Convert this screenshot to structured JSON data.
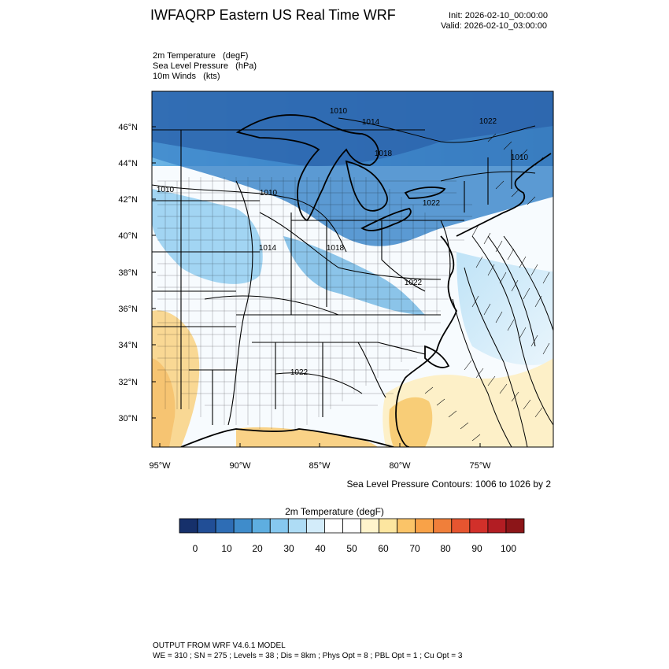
{
  "header": {
    "title": "IWFAQRP Eastern US Real Time WRF",
    "init": "Init: 2026-02-10_00:00:00",
    "valid": "Valid: 2026-02-10_03:00:00"
  },
  "fields": [
    "2m Temperature   (degF)",
    "Sea Level Pressure   (hPa)",
    "10m Winds   (kts)"
  ],
  "map": {
    "lat_labels": [
      "46°N",
      "44°N",
      "42°N",
      "40°N",
      "38°N",
      "36°N",
      "34°N",
      "32°N",
      "30°N"
    ],
    "lon_labels": [
      "95°W",
      "90°W",
      "85°W",
      "80°W",
      "75°W"
    ],
    "pressure_labels": [
      "1010",
      "1014",
      "1018",
      "1022",
      "1010",
      "1010",
      "1014",
      "1018",
      "1022",
      "1022",
      "1022",
      "1010"
    ]
  },
  "contour_note": "Sea Level Pressure Contours: 1006 to 1026 by 2",
  "colorbar": {
    "title": "2m Temperature  (degF)",
    "ticks": [
      "0",
      "10",
      "20",
      "30",
      "40",
      "50",
      "60",
      "70",
      "80",
      "90",
      "100"
    ],
    "colors": [
      "#16306b",
      "#214e96",
      "#2e6db5",
      "#3f8ccb",
      "#5eaee0",
      "#86c8ef",
      "#aedcf5",
      "#d3ecfa",
      "#ffffff",
      "#ffffff",
      "#fff4cc",
      "#fde6a0",
      "#fbc468",
      "#f8a248",
      "#f07f3a",
      "#e65530",
      "#d2302a",
      "#b21d23",
      "#8c1518"
    ]
  },
  "footer": {
    "line1": "OUTPUT FROM WRF V4.6.1 MODEL",
    "line2": "WE = 310 ; SN = 275 ; Levels = 38 ; Dis = 8km ; Phys Opt = 8 ; PBL Opt = 1 ; Cu Opt = 3"
  }
}
